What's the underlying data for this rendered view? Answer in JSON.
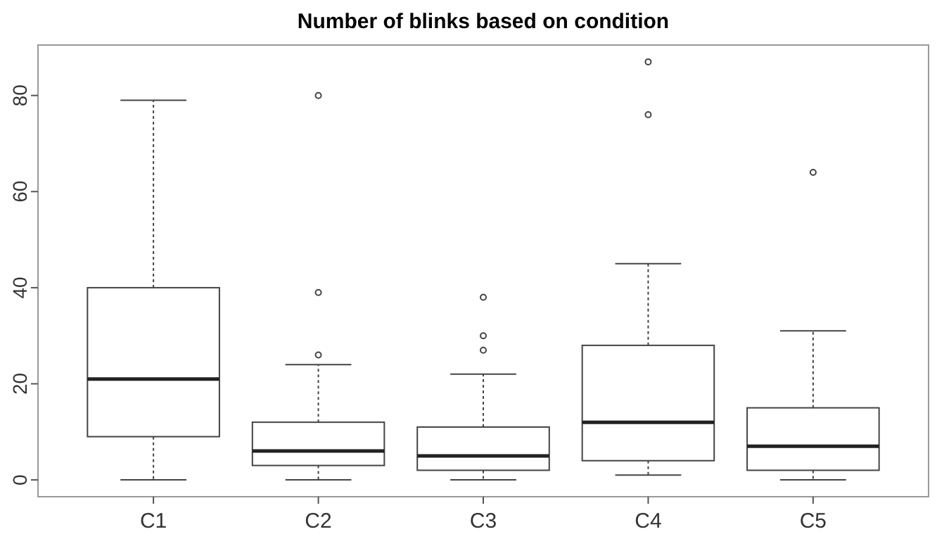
{
  "chart_data": {
    "type": "box",
    "title": "Number of blinks based on condition",
    "categories": [
      "C1",
      "C2",
      "C3",
      "C4",
      "C5"
    ],
    "boxes": [
      {
        "low": 0,
        "q1": 9,
        "median": 21,
        "q3": 40,
        "high": 79
      },
      {
        "low": 0,
        "q1": 3,
        "median": 6,
        "q3": 12,
        "high": 24,
        "outliers": [
          26,
          39,
          80
        ]
      },
      {
        "low": 0,
        "q1": 2,
        "median": 5,
        "q3": 11,
        "high": 22,
        "outliers": [
          27,
          30,
          38
        ]
      },
      {
        "low": 1,
        "q1": 4,
        "median": 12,
        "q3": 28,
        "high": 45,
        "outliers": [
          76,
          87
        ]
      },
      {
        "low": 0,
        "q1": 2,
        "median": 7,
        "q3": 15,
        "high": 31,
        "outliers": [
          64
        ]
      }
    ],
    "ylim": [
      -3.5,
      90.5
    ],
    "yticks": [
      0,
      20,
      40,
      60,
      80
    ],
    "grid": false
  }
}
